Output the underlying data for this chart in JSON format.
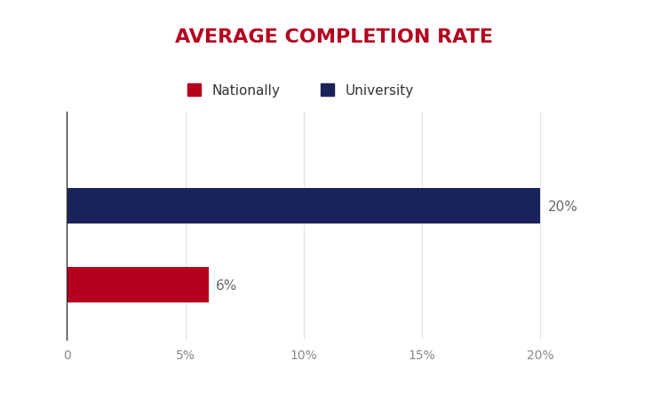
{
  "title": "AVERAGE COMPLETION RATE",
  "title_color": "#b5001e",
  "title_fontsize": 16,
  "categories": [
    "Nationally",
    "University"
  ],
  "values": [
    6,
    20
  ],
  "bar_colors": [
    "#b5001e",
    "#1a2359"
  ],
  "bar_labels": [
    "6%",
    "20%"
  ],
  "xlim": [
    0,
    22
  ],
  "xticks": [
    0,
    5,
    10,
    15,
    20
  ],
  "xtick_labels": [
    "0",
    "5%",
    "10%",
    "15%",
    "20%"
  ],
  "legend_labels": [
    "Nationally",
    "University"
  ],
  "legend_colors": [
    "#b5001e",
    "#1a2359"
  ],
  "background_color": "#ffffff",
  "label_fontsize": 11,
  "tick_fontsize": 10,
  "bar_height": 0.45
}
